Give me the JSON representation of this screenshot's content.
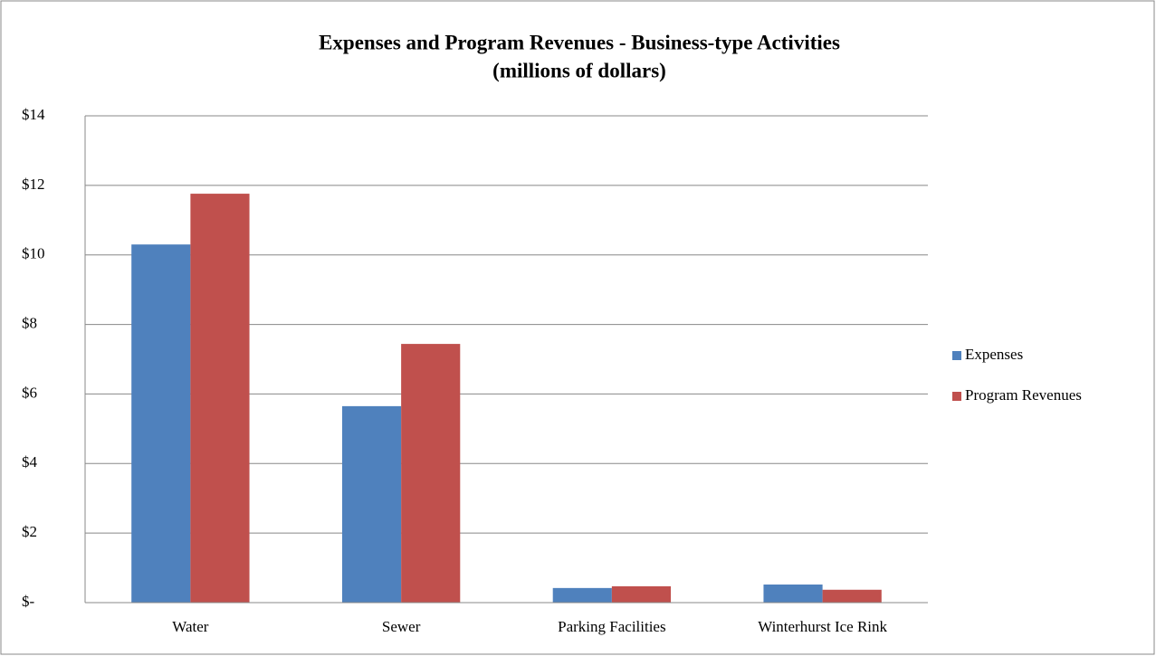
{
  "chart_data": {
    "type": "bar",
    "title": "Expenses and Program Revenues - Business-type Activities",
    "subtitle": "(millions of dollars)",
    "categories": [
      "Water",
      "Sewer",
      "Parking Facilities",
      "Winterhurst Ice Rink"
    ],
    "series": [
      {
        "name": "Expenses",
        "color": "#4f81bd",
        "values": [
          10.3,
          5.65,
          0.42,
          0.52
        ]
      },
      {
        "name": "Program Revenues",
        "color": "#c0504d",
        "values": [
          11.76,
          7.44,
          0.47,
          0.37
        ]
      }
    ],
    "ylim": [
      0,
      14
    ],
    "yticks": [
      {
        "value": 0,
        "label": "$-"
      },
      {
        "value": 2,
        "label": "$2"
      },
      {
        "value": 4,
        "label": "$4"
      },
      {
        "value": 6,
        "label": "$6"
      },
      {
        "value": 8,
        "label": "$8"
      },
      {
        "value": 10,
        "label": "$10"
      },
      {
        "value": 12,
        "label": "$12"
      },
      {
        "value": 14,
        "label": "$14"
      }
    ],
    "grid": true,
    "legend": "right"
  }
}
